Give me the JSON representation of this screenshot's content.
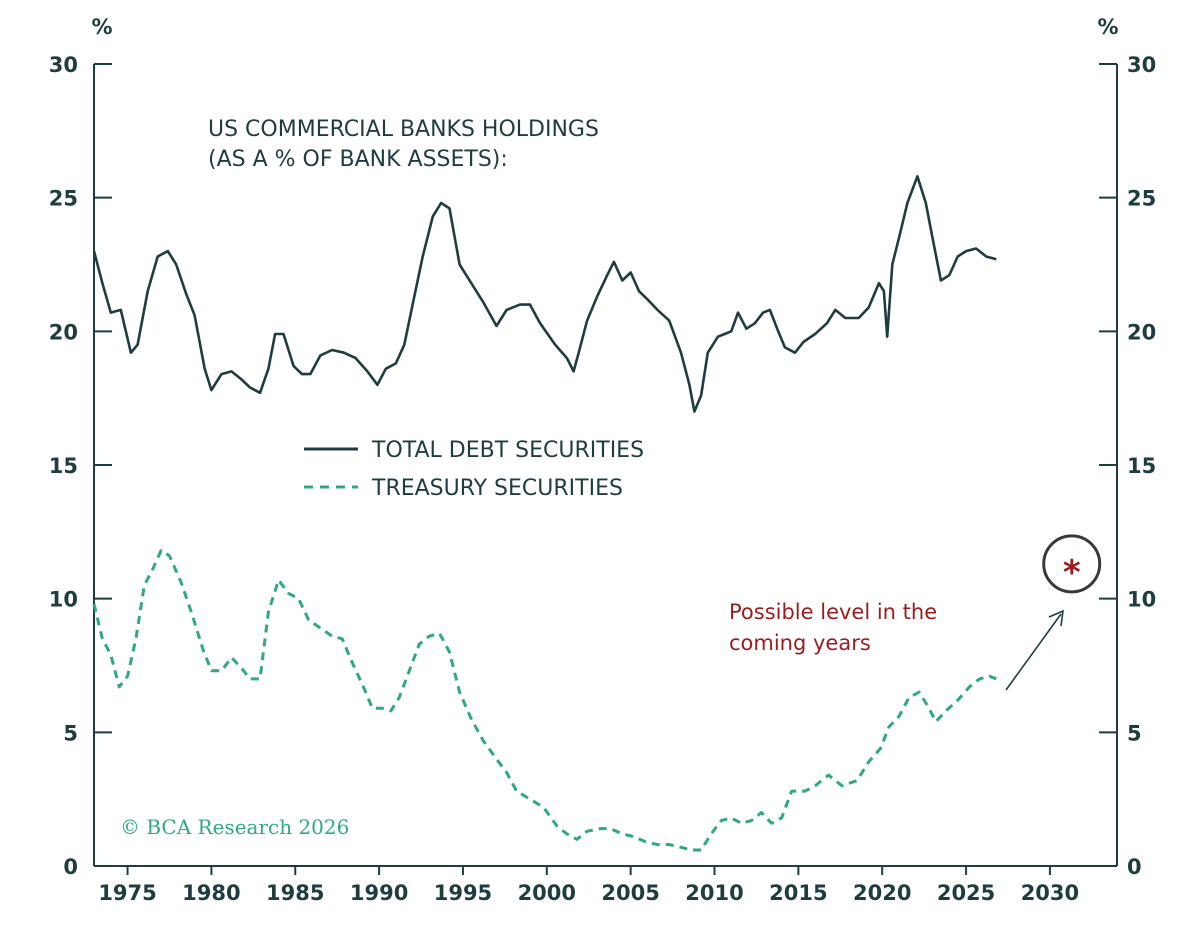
{
  "chart_data": {
    "type": "line",
    "title": "US COMMERCIAL BANKS HOLDINGS",
    "subtitle": "(AS A % OF BANK ASSETS):",
    "ylabel_left": "%",
    "ylabel_right": "%",
    "xlim": [
      1973,
      2034
    ],
    "ylim": [
      0,
      30
    ],
    "x_ticks": [
      "1975",
      "1980",
      "1985",
      "1990",
      "1995",
      "2000",
      "2005",
      "2010",
      "2015",
      "2020",
      "2025",
      "2030"
    ],
    "y_ticks": [
      "0",
      "5",
      "10",
      "15",
      "20",
      "25",
      "30"
    ],
    "legend_position": "center",
    "series": [
      {
        "name": "TOTAL DEBT SECURITIES",
        "style": "solid",
        "color": "#1f3d3f",
        "points": [
          [
            1973.0,
            23.0
          ],
          [
            1973.5,
            21.8
          ],
          [
            1974.0,
            20.7
          ],
          [
            1974.6,
            20.8
          ],
          [
            1975.2,
            19.2
          ],
          [
            1975.6,
            19.5
          ],
          [
            1976.2,
            21.5
          ],
          [
            1976.8,
            22.8
          ],
          [
            1977.4,
            23.0
          ],
          [
            1977.9,
            22.5
          ],
          [
            1978.5,
            21.4
          ],
          [
            1979.0,
            20.6
          ],
          [
            1979.6,
            18.6
          ],
          [
            1980.0,
            17.8
          ],
          [
            1980.6,
            18.4
          ],
          [
            1981.2,
            18.5
          ],
          [
            1981.8,
            18.2
          ],
          [
            1982.3,
            17.9
          ],
          [
            1982.9,
            17.7
          ],
          [
            1983.4,
            18.6
          ],
          [
            1983.8,
            19.9
          ],
          [
            1984.3,
            19.9
          ],
          [
            1984.9,
            18.7
          ],
          [
            1985.4,
            18.4
          ],
          [
            1985.9,
            18.4
          ],
          [
            1986.5,
            19.1
          ],
          [
            1987.2,
            19.3
          ],
          [
            1987.9,
            19.2
          ],
          [
            1988.6,
            19.0
          ],
          [
            1989.3,
            18.5
          ],
          [
            1989.9,
            18.0
          ],
          [
            1990.4,
            18.6
          ],
          [
            1991.0,
            18.8
          ],
          [
            1991.5,
            19.5
          ],
          [
            1992.0,
            21.0
          ],
          [
            1992.6,
            22.8
          ],
          [
            1993.2,
            24.3
          ],
          [
            1993.7,
            24.8
          ],
          [
            1994.2,
            24.6
          ],
          [
            1994.8,
            22.5
          ],
          [
            1995.5,
            21.8
          ],
          [
            1996.2,
            21.1
          ],
          [
            1997.0,
            20.2
          ],
          [
            1997.6,
            20.8
          ],
          [
            1998.4,
            21.0
          ],
          [
            1999.0,
            21.0
          ],
          [
            1999.6,
            20.3
          ],
          [
            2000.5,
            19.5
          ],
          [
            2001.2,
            19.0
          ],
          [
            2001.6,
            18.5
          ],
          [
            2001.9,
            19.2
          ],
          [
            2002.4,
            20.4
          ],
          [
            2003.0,
            21.3
          ],
          [
            2003.6,
            22.1
          ],
          [
            2004.0,
            22.6
          ],
          [
            2004.5,
            21.9
          ],
          [
            2005.0,
            22.2
          ],
          [
            2005.5,
            21.5
          ],
          [
            2006.0,
            21.2
          ],
          [
            2006.6,
            20.8
          ],
          [
            2007.3,
            20.4
          ],
          [
            2008.0,
            19.2
          ],
          [
            2008.5,
            18.0
          ],
          [
            2008.8,
            17.0
          ],
          [
            2009.2,
            17.6
          ],
          [
            2009.6,
            19.2
          ],
          [
            2010.2,
            19.8
          ],
          [
            2010.6,
            19.9
          ],
          [
            2011.0,
            20.0
          ],
          [
            2011.4,
            20.7
          ],
          [
            2011.9,
            20.1
          ],
          [
            2012.4,
            20.3
          ],
          [
            2012.9,
            20.7
          ],
          [
            2013.3,
            20.8
          ],
          [
            2013.8,
            20.0
          ],
          [
            2014.2,
            19.4
          ],
          [
            2014.8,
            19.2
          ],
          [
            2015.3,
            19.6
          ],
          [
            2016.0,
            19.9
          ],
          [
            2016.7,
            20.3
          ],
          [
            2017.2,
            20.8
          ],
          [
            2017.8,
            20.5
          ],
          [
            2018.6,
            20.5
          ],
          [
            2019.2,
            20.9
          ],
          [
            2019.8,
            21.8
          ],
          [
            2020.1,
            21.5
          ],
          [
            2020.3,
            19.8
          ],
          [
            2020.6,
            22.5
          ],
          [
            2021.0,
            23.5
          ],
          [
            2021.5,
            24.8
          ],
          [
            2022.1,
            25.8
          ],
          [
            2022.6,
            24.8
          ],
          [
            2023.0,
            23.5
          ],
          [
            2023.5,
            21.9
          ],
          [
            2024.0,
            22.1
          ],
          [
            2024.5,
            22.8
          ],
          [
            2025.0,
            23.0
          ],
          [
            2025.6,
            23.1
          ],
          [
            2026.2,
            22.8
          ],
          [
            2026.8,
            22.7
          ]
        ]
      },
      {
        "name": "TREASURY SECURITIES",
        "style": "dashed",
        "color": "#2eaa7c",
        "points": [
          [
            1973.0,
            9.8
          ],
          [
            1973.5,
            8.5
          ],
          [
            1974.0,
            7.9
          ],
          [
            1974.5,
            6.7
          ],
          [
            1975.0,
            7.1
          ],
          [
            1975.5,
            8.5
          ],
          [
            1976.0,
            10.5
          ],
          [
            1976.5,
            11.1
          ],
          [
            1977.0,
            11.8
          ],
          [
            1977.5,
            11.6
          ],
          [
            1978.2,
            10.6
          ],
          [
            1978.8,
            9.5
          ],
          [
            1979.5,
            8.1
          ],
          [
            1980.0,
            7.3
          ],
          [
            1980.6,
            7.3
          ],
          [
            1981.2,
            7.8
          ],
          [
            1981.8,
            7.4
          ],
          [
            1982.3,
            7.0
          ],
          [
            1982.9,
            7.0
          ],
          [
            1983.4,
            9.5
          ],
          [
            1984.0,
            10.7
          ],
          [
            1984.6,
            10.2
          ],
          [
            1985.2,
            10.0
          ],
          [
            1985.8,
            9.2
          ],
          [
            1986.5,
            8.9
          ],
          [
            1987.2,
            8.6
          ],
          [
            1987.8,
            8.5
          ],
          [
            1988.4,
            7.6
          ],
          [
            1989.0,
            6.8
          ],
          [
            1989.6,
            5.9
          ],
          [
            1990.2,
            5.9
          ],
          [
            1990.7,
            5.8
          ],
          [
            1991.2,
            6.3
          ],
          [
            1991.8,
            7.3
          ],
          [
            1992.4,
            8.3
          ],
          [
            1993.0,
            8.6
          ],
          [
            1993.6,
            8.7
          ],
          [
            1994.2,
            8.0
          ],
          [
            1994.8,
            6.5
          ],
          [
            1995.5,
            5.5
          ],
          [
            1996.2,
            4.7
          ],
          [
            1997.0,
            4.0
          ],
          [
            1997.6,
            3.5
          ],
          [
            1998.2,
            2.8
          ],
          [
            1999.0,
            2.5
          ],
          [
            1999.8,
            2.2
          ],
          [
            2000.6,
            1.5
          ],
          [
            2001.2,
            1.2
          ],
          [
            2001.8,
            1.0
          ],
          [
            2002.4,
            1.3
          ],
          [
            2003.2,
            1.4
          ],
          [
            2003.8,
            1.4
          ],
          [
            2004.5,
            1.2
          ],
          [
            2005.2,
            1.1
          ],
          [
            2005.9,
            0.9
          ],
          [
            2006.6,
            0.8
          ],
          [
            2007.3,
            0.8
          ],
          [
            2008.0,
            0.7
          ],
          [
            2008.6,
            0.6
          ],
          [
            2009.2,
            0.6
          ],
          [
            2009.8,
            1.2
          ],
          [
            2010.4,
            1.7
          ],
          [
            2011.0,
            1.8
          ],
          [
            2011.6,
            1.6
          ],
          [
            2012.2,
            1.7
          ],
          [
            2012.8,
            2.0
          ],
          [
            2013.4,
            1.6
          ],
          [
            2014.0,
            1.8
          ],
          [
            2014.6,
            2.8
          ],
          [
            2015.4,
            2.8
          ],
          [
            2016.0,
            3.0
          ],
          [
            2016.8,
            3.4
          ],
          [
            2017.6,
            3.0
          ],
          [
            2018.5,
            3.2
          ],
          [
            2019.2,
            3.9
          ],
          [
            2019.9,
            4.4
          ],
          [
            2020.4,
            5.2
          ],
          [
            2021.0,
            5.6
          ],
          [
            2021.6,
            6.3
          ],
          [
            2022.2,
            6.5
          ],
          [
            2022.7,
            6.0
          ],
          [
            2023.2,
            5.4
          ],
          [
            2023.8,
            5.8
          ],
          [
            2024.5,
            6.2
          ],
          [
            2025.2,
            6.7
          ],
          [
            2025.8,
            7.0
          ],
          [
            2026.4,
            7.1
          ],
          [
            2026.8,
            7.0
          ]
        ]
      }
    ],
    "annotation": {
      "text_line1": "Possible level in the",
      "text_line2": "coming years",
      "marker": "*",
      "marker_point": [
        2031.3,
        11.3
      ],
      "color": "#9b1c1c"
    },
    "copyright": "© BCA Research 2026"
  }
}
